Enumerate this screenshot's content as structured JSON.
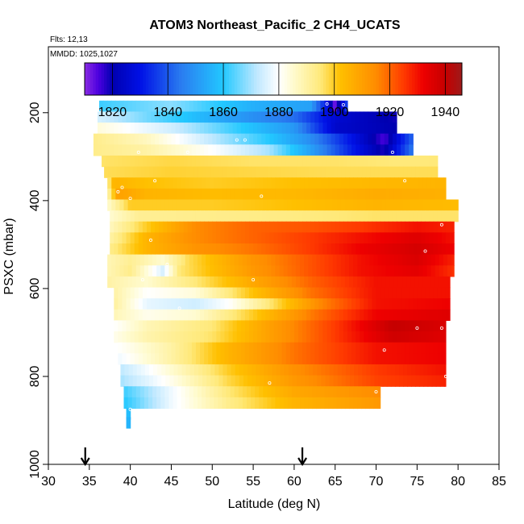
{
  "chart_data": {
    "type": "heatmap",
    "title": "ATOM3 Northeast_Pacific_2 CH4_UCATS",
    "subtitle_lines": [
      "Flts: 12,13",
      "MMDD: 1025,1027"
    ],
    "xlabel": "Latitude (deg N)",
    "ylabel": "PSXC (mbar)",
    "xlim": [
      30,
      85
    ],
    "ylim": [
      1000,
      50
    ],
    "x_ticks": [
      "30",
      "35",
      "40",
      "45",
      "50",
      "55",
      "60",
      "65",
      "70",
      "75",
      "80",
      "85"
    ],
    "y_ticks": [
      "200",
      "400",
      "600",
      "800",
      "1000"
    ],
    "colorbar": {
      "min": 1810,
      "max": 1946,
      "tick_values": [
        1820,
        1840,
        1860,
        1880,
        1900,
        1920,
        1940
      ],
      "tick_labels": [
        "1820",
        "1840",
        "1860",
        "1880",
        "1900",
        "1920",
        "1940"
      ],
      "stops": [
        [
          1810,
          "#8a2be2"
        ],
        [
          1815,
          "#4b00e0"
        ],
        [
          1820,
          "#0000b0"
        ],
        [
          1830,
          "#0010e6"
        ],
        [
          1845,
          "#2a7ef0"
        ],
        [
          1860,
          "#22c8ff"
        ],
        [
          1872,
          "#bfe8ff"
        ],
        [
          1880,
          "#ffffff"
        ],
        [
          1885,
          "#fffbd0"
        ],
        [
          1895,
          "#ffe97a"
        ],
        [
          1902,
          "#ffc000"
        ],
        [
          1915,
          "#ff8c00"
        ],
        [
          1925,
          "#ff3a00"
        ],
        [
          1932,
          "#ee0000"
        ],
        [
          1940,
          "#c50000"
        ],
        [
          1946,
          "#9e1a1a"
        ]
      ]
    },
    "rows": [
      {
        "p": 185,
        "lat_min": 36.2,
        "lat_max": 66.5,
        "knots": [
          [
            36.2,
            1862
          ],
          [
            45,
            1868
          ],
          [
            55,
            1855
          ],
          [
            62,
            1852
          ],
          [
            64,
            1830
          ],
          [
            65,
            1812
          ],
          [
            66.5,
            1838
          ]
        ]
      },
      {
        "p": 210,
        "lat_min": 36.0,
        "lat_max": 72.5,
        "knots": [
          [
            36,
            1875
          ],
          [
            45,
            1862
          ],
          [
            52,
            1852
          ],
          [
            60,
            1843
          ],
          [
            65,
            1826
          ],
          [
            72.5,
            1819
          ]
        ]
      },
      {
        "p": 235,
        "lat_min": 36.0,
        "lat_max": 72.5,
        "knots": [
          [
            36,
            1884
          ],
          [
            45,
            1874
          ],
          [
            52,
            1863
          ],
          [
            60,
            1850
          ],
          [
            65,
            1825
          ],
          [
            72.5,
            1820
          ]
        ]
      },
      {
        "p": 260,
        "lat_min": 35.5,
        "lat_max": 74.5,
        "knots": [
          [
            35.5,
            1893
          ],
          [
            42,
            1887
          ],
          [
            50,
            1872
          ],
          [
            57,
            1860
          ],
          [
            62,
            1848
          ],
          [
            67,
            1830
          ],
          [
            71,
            1815
          ],
          [
            74.5,
            1842
          ]
        ]
      },
      {
        "p": 285,
        "lat_min": 35.5,
        "lat_max": 74.5,
        "knots": [
          [
            35.5,
            1893
          ],
          [
            42,
            1890
          ],
          [
            50,
            1880
          ],
          [
            57,
            1870
          ],
          [
            62,
            1852
          ],
          [
            67,
            1832
          ],
          [
            71,
            1818
          ],
          [
            74.5,
            1845
          ]
        ]
      },
      {
        "p": 310,
        "lat_min": 36.5,
        "lat_max": 77.5,
        "knots": [
          [
            36.5,
            1896
          ],
          [
            45,
            1898
          ],
          [
            55,
            1896
          ],
          [
            65,
            1896
          ],
          [
            72,
            1895
          ],
          [
            77.5,
            1895
          ]
        ]
      },
      {
        "p": 335,
        "lat_min": 36.8,
        "lat_max": 77.5,
        "knots": [
          [
            36.8,
            1897
          ],
          [
            45,
            1899
          ],
          [
            55,
            1898
          ],
          [
            65,
            1897
          ],
          [
            77.5,
            1897
          ]
        ]
      },
      {
        "p": 360,
        "lat_min": 37.2,
        "lat_max": 78.5,
        "knots": [
          [
            37.2,
            1892
          ],
          [
            38,
            1905
          ],
          [
            42,
            1902
          ],
          [
            50,
            1900
          ],
          [
            60,
            1902
          ],
          [
            70,
            1904
          ],
          [
            78.5,
            1905
          ]
        ]
      },
      {
        "p": 385,
        "lat_min": 37.2,
        "lat_max": 78.5,
        "knots": [
          [
            37.2,
            1888
          ],
          [
            38.5,
            1910
          ],
          [
            42,
            1905
          ],
          [
            50,
            1903
          ],
          [
            60,
            1904
          ],
          [
            70,
            1907
          ],
          [
            78.5,
            1906
          ]
        ]
      },
      {
        "p": 410,
        "lat_min": 37.2,
        "lat_max": 80.0,
        "knots": [
          [
            37.2,
            1885
          ],
          [
            40,
            1900
          ],
          [
            50,
            1900
          ],
          [
            60,
            1902
          ],
          [
            70,
            1905
          ],
          [
            80,
            1903
          ]
        ]
      },
      {
        "p": 435,
        "lat_min": 37.5,
        "lat_max": 80.0,
        "knots": [
          [
            37.5,
            1885
          ],
          [
            41,
            1892
          ],
          [
            50,
            1893
          ],
          [
            60,
            1894
          ],
          [
            70,
            1896
          ],
          [
            80,
            1896
          ]
        ]
      },
      {
        "p": 460,
        "lat_min": 37.5,
        "lat_max": 79.5,
        "knots": [
          [
            37.5,
            1887
          ],
          [
            42,
            1900
          ],
          [
            48,
            1915
          ],
          [
            55,
            1920
          ],
          [
            62,
            1922
          ],
          [
            68,
            1925
          ],
          [
            75,
            1930
          ],
          [
            79.5,
            1928
          ]
        ]
      },
      {
        "p": 485,
        "lat_min": 37.5,
        "lat_max": 79.5,
        "knots": [
          [
            37.5,
            1890
          ],
          [
            42,
            1905
          ],
          [
            48,
            1915
          ],
          [
            55,
            1920
          ],
          [
            62,
            1925
          ],
          [
            68,
            1930
          ],
          [
            75,
            1935
          ],
          [
            79.5,
            1930
          ]
        ]
      },
      {
        "p": 510,
        "lat_min": 37.5,
        "lat_max": 79.5,
        "knots": [
          [
            37.5,
            1893
          ],
          [
            42,
            1905
          ],
          [
            48,
            1913
          ],
          [
            55,
            1918
          ],
          [
            62,
            1925
          ],
          [
            68,
            1932
          ],
          [
            75,
            1937
          ],
          [
            79.5,
            1932
          ]
        ]
      },
      {
        "p": 535,
        "lat_min": 37.2,
        "lat_max": 79.5,
        "knots": [
          [
            37.2,
            1888
          ],
          [
            40,
            1892
          ],
          [
            44,
            1885
          ],
          [
            47,
            1897
          ],
          [
            55,
            1913
          ],
          [
            62,
            1922
          ],
          [
            68,
            1930
          ],
          [
            75,
            1936
          ],
          [
            79.5,
            1928
          ]
        ]
      },
      {
        "p": 560,
        "lat_min": 37.2,
        "lat_max": 79.5,
        "knots": [
          [
            37.2,
            1888
          ],
          [
            40,
            1893
          ],
          [
            44,
            1875
          ],
          [
            46,
            1895
          ],
          [
            55,
            1912
          ],
          [
            62,
            1922
          ],
          [
            68,
            1930
          ],
          [
            75,
            1934
          ],
          [
            79.5,
            1926
          ]
        ]
      },
      {
        "p": 585,
        "lat_min": 37.2,
        "lat_max": 79.0,
        "knots": [
          [
            37.2,
            1890
          ],
          [
            42,
            1885
          ],
          [
            48,
            1895
          ],
          [
            55,
            1908
          ],
          [
            62,
            1920
          ],
          [
            70,
            1930
          ],
          [
            79,
            1930
          ]
        ]
      },
      {
        "p": 610,
        "lat_min": 38.0,
        "lat_max": 79.0,
        "knots": [
          [
            38,
            1890
          ],
          [
            42,
            1880
          ],
          [
            48,
            1884
          ],
          [
            55,
            1902
          ],
          [
            62,
            1918
          ],
          [
            70,
            1930
          ],
          [
            79,
            1930
          ]
        ]
      },
      {
        "p": 635,
        "lat_min": 38.0,
        "lat_max": 79.0,
        "knots": [
          [
            38,
            1891
          ],
          [
            42,
            1877
          ],
          [
            48,
            1874
          ],
          [
            52,
            1880
          ],
          [
            57,
            1895
          ],
          [
            63,
            1915
          ],
          [
            70,
            1930
          ],
          [
            79,
            1932
          ]
        ]
      },
      {
        "p": 660,
        "lat_min": 38.0,
        "lat_max": 79.0,
        "knots": [
          [
            38,
            1888
          ],
          [
            42,
            1882
          ],
          [
            48,
            1885
          ],
          [
            55,
            1900
          ],
          [
            62,
            1917
          ],
          [
            70,
            1932
          ],
          [
            79,
            1935
          ]
        ]
      },
      {
        "p": 685,
        "lat_min": 38.0,
        "lat_max": 78.5,
        "knots": [
          [
            38,
            1880
          ],
          [
            42,
            1888
          ],
          [
            50,
            1895
          ],
          [
            57,
            1910
          ],
          [
            65,
            1925
          ],
          [
            72,
            1940
          ],
          [
            78.5,
            1936
          ]
        ]
      },
      {
        "p": 710,
        "lat_min": 38.0,
        "lat_max": 78.5,
        "knots": [
          [
            38,
            1882
          ],
          [
            42,
            1889
          ],
          [
            50,
            1896
          ],
          [
            57,
            1910
          ],
          [
            65,
            1925
          ],
          [
            72,
            1938
          ],
          [
            78.5,
            1935
          ]
        ]
      },
      {
        "p": 735,
        "lat_min": 38.5,
        "lat_max": 78.5,
        "knots": [
          [
            38.5,
            1880
          ],
          [
            45,
            1890
          ],
          [
            52,
            1905
          ],
          [
            60,
            1918
          ],
          [
            70,
            1930
          ],
          [
            78.5,
            1932
          ]
        ]
      },
      {
        "p": 760,
        "lat_min": 38.5,
        "lat_max": 78.5,
        "knots": [
          [
            38.5,
            1878
          ],
          [
            45,
            1890
          ],
          [
            52,
            1905
          ],
          [
            60,
            1918
          ],
          [
            70,
            1930
          ],
          [
            78.5,
            1932
          ]
        ]
      },
      {
        "p": 785,
        "lat_min": 38.8,
        "lat_max": 78.5,
        "knots": [
          [
            38.8,
            1872
          ],
          [
            45,
            1885
          ],
          [
            52,
            1900
          ],
          [
            60,
            1914
          ],
          [
            70,
            1925
          ],
          [
            78.5,
            1930
          ]
        ]
      },
      {
        "p": 810,
        "lat_min": 38.8,
        "lat_max": 78.5,
        "knots": [
          [
            38.8,
            1870
          ],
          [
            45,
            1882
          ],
          [
            52,
            1898
          ],
          [
            60,
            1912
          ],
          [
            70,
            1924
          ],
          [
            78.5,
            1928
          ]
        ]
      },
      {
        "p": 835,
        "lat_min": 39.2,
        "lat_max": 70.5,
        "knots": [
          [
            39.2,
            1862
          ],
          [
            45,
            1878
          ],
          [
            52,
            1895
          ],
          [
            60,
            1908
          ],
          [
            70.5,
            1915
          ]
        ]
      },
      {
        "p": 860,
        "lat_min": 39.2,
        "lat_max": 70.5,
        "knots": [
          [
            39.2,
            1860
          ],
          [
            45,
            1878
          ],
          [
            52,
            1893
          ],
          [
            60,
            1905
          ],
          [
            70.5,
            1912
          ]
        ]
      },
      {
        "p": 885,
        "lat_min": 39.5,
        "lat_max": 40.0,
        "knots": [
          [
            39.5,
            1858
          ],
          [
            40,
            1858
          ]
        ]
      },
      {
        "p": 905,
        "lat_min": 39.5,
        "lat_max": 40.0,
        "knots": [
          [
            39.5,
            1856
          ],
          [
            40,
            1856
          ]
        ]
      }
    ],
    "points": [
      [
        36.3,
        195
      ],
      [
        64,
        180
      ],
      [
        66,
        182
      ],
      [
        72,
        290
      ],
      [
        73.5,
        355
      ],
      [
        41,
        290
      ],
      [
        47,
        290
      ],
      [
        53,
        262
      ],
      [
        54,
        262
      ],
      [
        43,
        355
      ],
      [
        40,
        395
      ],
      [
        56,
        390
      ],
      [
        39,
        370
      ],
      [
        38.5,
        380
      ],
      [
        78,
        455
      ],
      [
        42.5,
        490
      ],
      [
        76,
        515
      ],
      [
        44.5,
        545
      ],
      [
        41.5,
        580
      ],
      [
        55,
        580
      ],
      [
        46,
        645
      ],
      [
        75,
        690
      ],
      [
        78,
        690
      ],
      [
        71,
        740
      ],
      [
        57,
        815
      ],
      [
        70,
        835
      ],
      [
        40,
        875
      ],
      [
        78.5,
        800
      ]
    ],
    "arrows": [
      34.5,
      61.0
    ]
  }
}
